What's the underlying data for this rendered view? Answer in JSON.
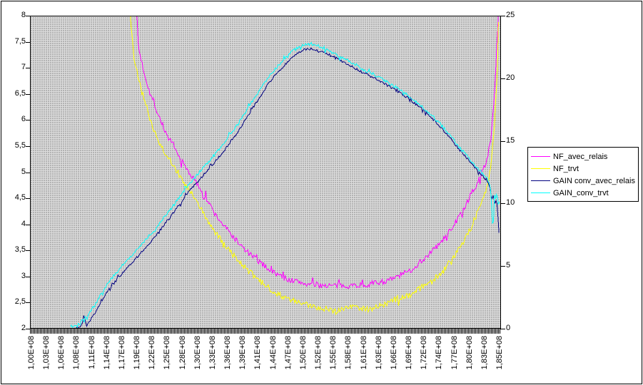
{
  "window": {
    "background": "#ffffff",
    "border_color": "#000000"
  },
  "chart_data": {
    "type": "line",
    "title": "",
    "xlabel": "",
    "ylabel_left": "",
    "ylabel_right": "",
    "grid": false,
    "plot_background": {
      "style": "dotted-gray-pattern",
      "dark": "#b3b3b3",
      "light": "#dcdcdc"
    },
    "x_axis": {
      "kind": "category-frequency",
      "x_unit": "MHz",
      "range_mhz": [
        100,
        186.3
      ],
      "tick_labels": [
        "1,00E+08",
        "1,03E+08",
        "1,06E+08",
        "1,08E+08",
        "1,11E+08",
        "1,14E+08",
        "1,17E+08",
        "1,19E+08",
        "1,22E+08",
        "1,25E+08",
        "1,28E+08",
        "1,30E+08",
        "1,33E+08",
        "1,36E+08",
        "1,39E+08",
        "1,41E+08",
        "1,44E+08",
        "1,47E+08",
        "1,50E+08",
        "1,52E+08",
        "1,55E+08",
        "1,58E+08",
        "1,61E+08",
        "1,63E+08",
        "1,66E+08",
        "1,69E+08",
        "1,72E+08",
        "1,74E+08",
        "1,77E+08",
        "1,80E+08",
        "1,83E+08",
        "1,85E+08"
      ]
    },
    "y_axis_left": {
      "min": 2,
      "max": 8,
      "step": 0.5,
      "tick_labels": [
        "8",
        "7,5",
        "7",
        "6,5",
        "6",
        "5,5",
        "5",
        "4,5",
        "4",
        "3,5",
        "3",
        "2,5",
        "2"
      ]
    },
    "y_axis_right": {
      "min": 0,
      "max": 25,
      "step": 5,
      "tick_labels": [
        "25",
        "20",
        "15",
        "10",
        "5",
        "0"
      ]
    },
    "legend": {
      "position": "right",
      "entries": [
        {
          "label": "NF_avec_relais",
          "color": "#FF00FF"
        },
        {
          "label": "NF_trvt",
          "color": "#FFFF00"
        },
        {
          "label": "GAIN conv_avec_relais",
          "color": "#000080"
        },
        {
          "label": "GAIN_conv_trvt",
          "color": "#00FFFF"
        }
      ]
    },
    "series": [
      {
        "name": "NF_avec_relais",
        "color": "#FF00FF",
        "axis": "left",
        "noise": 0.055,
        "points": [
          [
            119.4,
            8.25
          ],
          [
            119.8,
            7.4
          ],
          [
            120.9,
            6.9
          ],
          [
            122,
            6.5
          ],
          [
            123.5,
            6.1
          ],
          [
            125,
            5.72
          ],
          [
            126.2,
            5.5
          ],
          [
            127.5,
            5.25
          ],
          [
            129.4,
            4.95
          ],
          [
            131.4,
            4.65
          ],
          [
            134,
            4.17
          ],
          [
            136.6,
            3.83
          ],
          [
            139.2,
            3.52
          ],
          [
            141.8,
            3.29
          ],
          [
            144.5,
            3.08
          ],
          [
            147.1,
            2.94
          ],
          [
            151,
            2.84
          ],
          [
            156.2,
            2.81
          ],
          [
            161.5,
            2.83
          ],
          [
            166,
            2.92
          ],
          [
            169.9,
            3.11
          ],
          [
            173.2,
            3.42
          ],
          [
            175.8,
            3.69
          ],
          [
            178.5,
            4.1
          ],
          [
            180.8,
            4.51
          ],
          [
            182.4,
            4.86
          ],
          [
            183.7,
            5.2
          ],
          [
            184.6,
            5.61
          ],
          [
            185.2,
            6.5
          ],
          [
            185.7,
            7.45
          ],
          [
            186.1,
            8.35
          ]
        ]
      },
      {
        "name": "NF_trvt",
        "color": "#FFFF00",
        "axis": "left",
        "noise": 0.06,
        "points": [
          [
            118.1,
            8.25
          ],
          [
            119,
            7.2
          ],
          [
            120,
            6.7
          ],
          [
            120.9,
            6.4
          ],
          [
            122,
            6.0
          ],
          [
            123.5,
            5.6
          ],
          [
            125,
            5.32
          ],
          [
            126.2,
            5.15
          ],
          [
            128,
            4.8
          ],
          [
            129.5,
            4.6
          ],
          [
            131.5,
            4.25
          ],
          [
            134,
            3.82
          ],
          [
            136.6,
            3.48
          ],
          [
            139.2,
            3.18
          ],
          [
            141.8,
            2.92
          ],
          [
            144.5,
            2.72
          ],
          [
            147.1,
            2.56
          ],
          [
            150,
            2.46
          ],
          [
            153,
            2.4
          ],
          [
            156,
            2.33
          ],
          [
            159,
            2.42
          ],
          [
            162,
            2.36
          ],
          [
            165,
            2.45
          ],
          [
            167,
            2.55
          ],
          [
            169.9,
            2.65
          ],
          [
            172,
            2.8
          ],
          [
            174.5,
            2.95
          ],
          [
            176.5,
            3.2
          ],
          [
            178.5,
            3.5
          ],
          [
            180.8,
            3.9
          ],
          [
            182.4,
            4.3
          ],
          [
            183.7,
            4.65
          ],
          [
            184.6,
            5.1
          ],
          [
            185.3,
            6.0
          ],
          [
            185.8,
            7.1
          ],
          [
            186.05,
            8.35
          ]
        ]
      },
      {
        "name": "GAIN conv_avec_relais",
        "color": "#000080",
        "axis": "right",
        "noise": 0.1,
        "points": [
          [
            108.3,
            0.05
          ],
          [
            109.3,
            0.1
          ],
          [
            109.8,
            0.85
          ],
          [
            110.3,
            0.2
          ],
          [
            112,
            1.3
          ],
          [
            114,
            2.9
          ],
          [
            117,
            4.5
          ],
          [
            120,
            5.9
          ],
          [
            123,
            7.4
          ],
          [
            126,
            9.1
          ],
          [
            129,
            10.9
          ],
          [
            132,
            12.4
          ],
          [
            135,
            13.9
          ],
          [
            138,
            15.7
          ],
          [
            141,
            17.8
          ],
          [
            144,
            19.8
          ],
          [
            146,
            20.8
          ],
          [
            148,
            21.7
          ],
          [
            150,
            22.3
          ],
          [
            151.5,
            22.4
          ],
          [
            153,
            22.2
          ],
          [
            155,
            21.9
          ],
          [
            157,
            21.45
          ],
          [
            159,
            21.0
          ],
          [
            161,
            20.5
          ],
          [
            163,
            20.1
          ],
          [
            165,
            19.6
          ],
          [
            167,
            19.1
          ],
          [
            169,
            18.55
          ],
          [
            171,
            17.9
          ],
          [
            173,
            17.15
          ],
          [
            175,
            16.3
          ],
          [
            177,
            15.3
          ],
          [
            179,
            14.2
          ],
          [
            181,
            13.2
          ],
          [
            183,
            12.2
          ],
          [
            183.8,
            11.9
          ],
          [
            184.4,
            11.4
          ],
          [
            184.7,
            10.3
          ],
          [
            185.0,
            10.6
          ],
          [
            185.3,
            9.9
          ],
          [
            185.6,
            10.4
          ],
          [
            185.85,
            9.2
          ],
          [
            186.0,
            8.1
          ],
          [
            186.1,
            7.5
          ]
        ]
      },
      {
        "name": "GAIN_conv_trvt",
        "color": "#00FFFF",
        "axis": "right",
        "noise": 0.12,
        "points": [
          [
            107.3,
            0.2
          ],
          [
            108.2,
            0.1
          ],
          [
            109.5,
            0.6
          ],
          [
            110.3,
            0.9
          ],
          [
            112,
            2.0
          ],
          [
            114,
            3.5
          ],
          [
            117,
            5.1
          ],
          [
            120,
            6.5
          ],
          [
            123,
            8.0
          ],
          [
            126,
            9.7
          ],
          [
            129,
            11.5
          ],
          [
            132,
            13.0
          ],
          [
            135,
            14.5
          ],
          [
            138,
            16.3
          ],
          [
            141,
            18.4
          ],
          [
            144,
            20.3
          ],
          [
            146,
            21.3
          ],
          [
            148,
            22.2
          ],
          [
            150,
            22.7
          ],
          [
            151.5,
            22.8
          ],
          [
            153,
            22.6
          ],
          [
            155,
            22.2
          ],
          [
            157,
            21.75
          ],
          [
            159,
            21.3
          ],
          [
            161,
            20.75
          ],
          [
            163,
            20.35
          ],
          [
            165,
            19.85
          ],
          [
            167,
            19.35
          ],
          [
            169,
            18.8
          ],
          [
            171,
            18.1
          ],
          [
            173,
            17.35
          ],
          [
            175,
            16.5
          ],
          [
            177,
            15.5
          ],
          [
            179,
            14.4
          ],
          [
            181,
            13.4
          ],
          [
            183,
            12.4
          ],
          [
            184.0,
            12.0
          ],
          [
            184.5,
            11.3
          ],
          [
            184.8,
            9.1
          ],
          [
            185.0,
            7.7
          ],
          [
            185.2,
            10.9
          ],
          [
            185.45,
            10.2
          ],
          [
            185.7,
            11.0
          ],
          [
            185.9,
            9.6
          ],
          [
            186.1,
            10.3
          ],
          [
            186.25,
            9.4
          ]
        ]
      }
    ]
  }
}
